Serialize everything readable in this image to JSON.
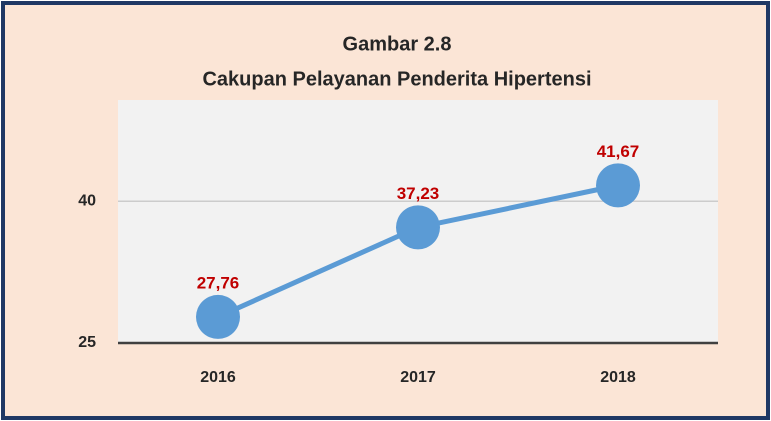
{
  "chart_data": {
    "type": "line",
    "title": "Gambar 2.8",
    "subtitle": "Cakupan Pelayanan Penderita Hipertensi",
    "categories": [
      "2016",
      "2017",
      "2018"
    ],
    "series": [
      {
        "name": "Cakupan",
        "color": "#5b9bd5",
        "values": [
          27.76,
          37.23,
          41.67
        ],
        "value_labels": [
          "27,76",
          "37,23",
          "41,67"
        ]
      }
    ],
    "ylim": [
      25,
      50.7
    ],
    "yticks": [
      25,
      40
    ],
    "grid": true
  }
}
